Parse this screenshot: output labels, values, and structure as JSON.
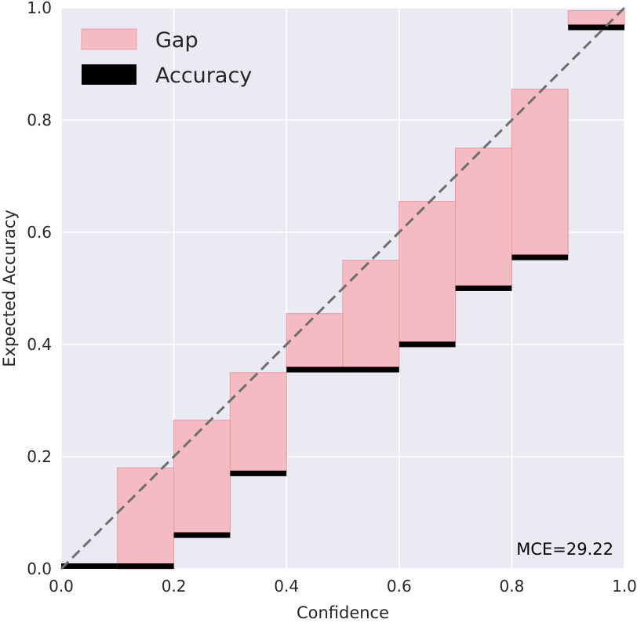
{
  "chart_data": {
    "type": "bar",
    "xlabel": "Confidence",
    "ylabel": "Expected Accuracy",
    "xlim": [
      0.0,
      1.0
    ],
    "ylim": [
      0.0,
      1.0
    ],
    "xticks": [
      "0.0",
      "0.2",
      "0.4",
      "0.6",
      "0.8",
      "1.0"
    ],
    "yticks": [
      "0.0",
      "0.2",
      "0.4",
      "0.6",
      "0.8",
      "1.0"
    ],
    "grid": true,
    "legend_position": "top-left",
    "bin_width": 0.1,
    "bins": [
      0.0,
      0.1,
      0.2,
      0.3,
      0.4,
      0.5,
      0.6,
      0.7,
      0.8,
      0.9
    ],
    "series": [
      {
        "name": "Gap",
        "kind": "gap",
        "top": [
          null,
          0.18,
          0.265,
          0.35,
          0.455,
          0.55,
          0.655,
          0.75,
          0.855,
          0.995
        ],
        "bottom": [
          null,
          0.0,
          0.065,
          0.175,
          0.36,
          0.36,
          0.405,
          0.505,
          0.56,
          0.97
        ]
      },
      {
        "name": "Accuracy",
        "kind": "accuracy",
        "values": [
          0.0,
          0.0,
          0.065,
          0.175,
          0.36,
          0.36,
          0.405,
          0.505,
          0.56,
          0.97
        ]
      }
    ],
    "annotation": "MCE=29.22",
    "colors": {
      "background": "#eaeaf2",
      "grid": "#ffffff",
      "gap_fill": "#f4bcc2",
      "gap_edge": "#eb9ea6",
      "accuracy": "#000000",
      "diagonal": "#6e6e6e"
    }
  }
}
